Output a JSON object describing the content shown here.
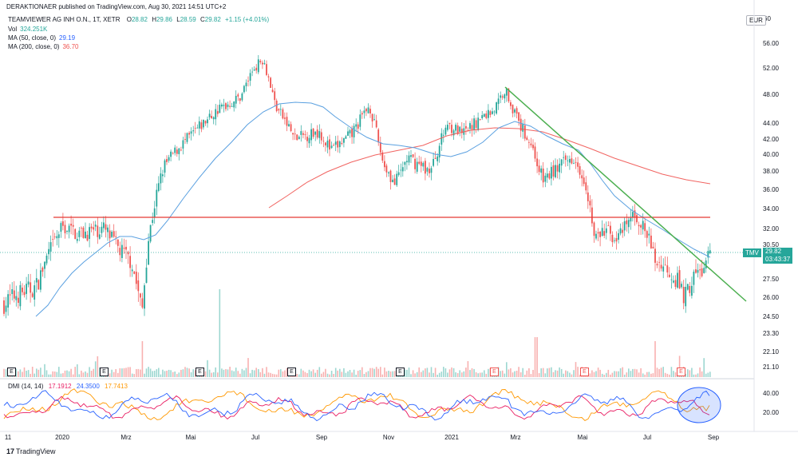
{
  "header": {
    "published_by": "DERAKTIONAER published on TradingView.com, Aug 30, 2021 14:51 UTC+2",
    "symbol_line": "TEAMVIEWER AG INH O.N., 1T, XETR",
    "ohlc": {
      "o_label": "O",
      "o": "28.82",
      "h_label": "H",
      "h": "29.86",
      "l_label": "L",
      "l": "28.59",
      "c_label": "C",
      "c": "29.82",
      "change": "+1.15 (+4.01%)"
    }
  },
  "legends": [
    {
      "label": "Vol",
      "value": "324.251K",
      "color": "#26a69a"
    },
    {
      "label": "MA (50, close, 0)",
      "value": "29.19",
      "color": "#2962ff"
    },
    {
      "label": "MA (200, close, 0)",
      "value": "36.70",
      "color": "#ef5350"
    }
  ],
  "currency": "EUR",
  "top_right": "60",
  "last_price": {
    "symbol": "TMV",
    "price": "29.82",
    "countdown": "03:43:37"
  },
  "dmi": {
    "label": "DMI (14, 14)",
    "plus_di": "17.1912",
    "minus_di": "24.3500",
    "adx": "17.7413",
    "colors": {
      "plus_di": "#e91e63",
      "minus_di": "#2962ff",
      "adx": "#ff9800"
    }
  },
  "earnings_markers": [
    "E",
    "E",
    "E",
    "E",
    "E",
    "E",
    "E",
    "E"
  ],
  "footer": {
    "logo": "17",
    "text": "TradingView"
  },
  "chart_data": {
    "type": "candlestick",
    "y_ticks": [
      "56.00",
      "52.00",
      "48.00",
      "44.00",
      "42.00",
      "40.00",
      "38.00",
      "36.00",
      "34.00",
      "32.00",
      "30.50",
      "27.50",
      "26.00",
      "24.50",
      "23.30",
      "22.10",
      "21.10"
    ],
    "x_ticks": [
      "11",
      "2020",
      "Mrz",
      "Mai",
      "Jul",
      "Sep",
      "Nov",
      "2021",
      "Mrz",
      "Mai",
      "Jul",
      "Sep"
    ],
    "dmi_ticks": [
      "40.00",
      "20.00"
    ],
    "support_level": 33.0,
    "trendline": {
      "from": [
        "2021-02-22",
        49.2
      ],
      "to": [
        "2021-09-20",
        26.0
      ]
    },
    "price_path": [
      [
        "2019-10",
        25.5
      ],
      [
        "2019-11",
        26.5
      ],
      [
        "2019-12",
        30.0
      ],
      [
        "2020-01",
        32.5
      ],
      [
        "2020-02",
        31.5
      ],
      [
        "2020-03",
        24.5
      ],
      [
        "2020-04",
        40.0
      ],
      [
        "2020-05",
        43.0
      ],
      [
        "2020-06",
        47.0
      ],
      [
        "2020-07",
        54.0
      ],
      [
        "2020-08",
        46.0
      ],
      [
        "2020-09",
        41.5
      ],
      [
        "2020-10",
        46.0
      ],
      [
        "2020-11",
        38.0
      ],
      [
        "2020-12",
        40.0
      ],
      [
        "2021-01",
        44.0
      ],
      [
        "2021-02",
        48.0
      ],
      [
        "2021-03",
        39.0
      ],
      [
        "2021-04",
        38.0
      ],
      [
        "2021-05",
        30.5
      ],
      [
        "2021-06",
        33.5
      ],
      [
        "2021-07",
        29.0
      ],
      [
        "2021-08",
        27.0
      ],
      [
        "2021-08-30",
        29.82
      ]
    ],
    "ma50_path": [
      [
        "2019-11",
        24.5
      ],
      [
        "2020-01",
        28.0
      ],
      [
        "2020-03",
        32.0
      ],
      [
        "2020-05",
        37.0
      ],
      [
        "2020-07",
        45.0
      ],
      [
        "2020-09",
        46.5
      ],
      [
        "2020-11",
        42.0
      ],
      [
        "2021-01",
        40.0
      ],
      [
        "2021-03",
        43.5
      ],
      [
        "2021-05",
        37.0
      ],
      [
        "2021-07",
        32.0
      ],
      [
        "2021-08-30",
        29.19
      ]
    ],
    "ma200_path": [
      [
        "2020-07",
        34.0
      ],
      [
        "2020-10",
        39.5
      ],
      [
        "2021-01",
        42.0
      ],
      [
        "2021-03",
        43.5
      ],
      [
        "2021-05",
        42.0
      ],
      [
        "2021-07",
        39.5
      ],
      [
        "2021-08-30",
        36.7
      ]
    ]
  }
}
